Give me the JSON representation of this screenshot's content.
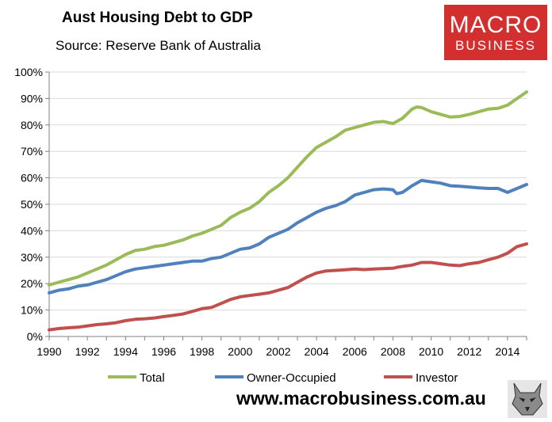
{
  "header": {
    "title": "Aust Housing Debt to GDP",
    "subtitle": "Source: Reserve Bank of Australia"
  },
  "logo": {
    "line1": "MACRO",
    "line2": "BUSINESS"
  },
  "footer": {
    "website": "www.macrobusiness.com.au"
  },
  "colors": {
    "total": "#9bbb59",
    "owner": "#4f81bd",
    "investor": "#c0504d",
    "logo_bg": "#d32f2f",
    "grid": "#d9d9d9"
  },
  "chart_data": {
    "type": "line",
    "title": "Aust Housing Debt to GDP",
    "xlim": [
      1990,
      2015
    ],
    "ylim": [
      0,
      100
    ],
    "y_unit": "%",
    "x_ticks": [
      "1990",
      "1992",
      "1994",
      "1996",
      "1998",
      "2000",
      "2002",
      "2004",
      "2006",
      "2008",
      "2010",
      "2012",
      "2014"
    ],
    "y_ticks": [
      "0%",
      "10%",
      "20%",
      "30%",
      "40%",
      "50%",
      "60%",
      "70%",
      "80%",
      "90%",
      "100%"
    ],
    "grid": "horizontal",
    "legend_position": "bottom",
    "series": [
      {
        "name": "Total",
        "color": "#9bbb59",
        "x": [
          1990,
          1990.5,
          1991,
          1991.5,
          1992,
          1992.5,
          1993,
          1993.5,
          1994,
          1994.5,
          1995,
          1995.5,
          1996,
          1996.5,
          1997,
          1997.5,
          1998,
          1998.5,
          1999,
          1999.5,
          2000,
          2000.5,
          2001,
          2001.5,
          2002,
          2002.5,
          2003,
          2003.5,
          2004,
          2004.5,
          2005,
          2005.5,
          2006,
          2006.5,
          2007,
          2007.5,
          2008,
          2008.5,
          2009,
          2009.25,
          2009.5,
          2010,
          2010.5,
          2011,
          2011.5,
          2012,
          2012.5,
          2013,
          2013.5,
          2014,
          2014.5,
          2015
        ],
        "y": [
          19.5,
          20.5,
          21.5,
          22.5,
          24,
          25.5,
          27,
          29,
          31,
          32.5,
          33,
          34,
          34.5,
          35.5,
          36.5,
          38,
          39,
          40.5,
          42,
          45,
          47,
          48.5,
          51,
          54.5,
          57,
          60,
          64,
          68,
          71.5,
          73.5,
          75.5,
          78,
          79,
          80,
          81,
          81.3,
          80.5,
          82.5,
          86,
          86.8,
          86.6,
          85,
          84,
          83,
          83.2,
          84,
          85,
          86,
          86.3,
          87.5,
          90,
          92.5
        ]
      },
      {
        "name": "Owner-Occupied",
        "color": "#4f81bd",
        "x": [
          1990,
          1990.5,
          1991,
          1991.5,
          1992,
          1992.5,
          1993,
          1993.5,
          1994,
          1994.5,
          1995,
          1995.5,
          1996,
          1996.5,
          1997,
          1997.5,
          1998,
          1998.5,
          1999,
          1999.5,
          2000,
          2000.5,
          2001,
          2001.5,
          2002,
          2002.5,
          2003,
          2003.5,
          2004,
          2004.5,
          2005,
          2005.5,
          2006,
          2006.5,
          2007,
          2007.5,
          2008,
          2008.2,
          2008.5,
          2009,
          2009.5,
          2010,
          2010.5,
          2011,
          2011.5,
          2012,
          2012.5,
          2013,
          2013.5,
          2014,
          2014.5,
          2015
        ],
        "y": [
          16.5,
          17.5,
          18,
          19,
          19.5,
          20.5,
          21.5,
          23,
          24.5,
          25.5,
          26,
          26.5,
          27,
          27.5,
          28,
          28.5,
          28.5,
          29.5,
          30,
          31.5,
          33,
          33.5,
          35,
          37.5,
          39,
          40.5,
          43,
          45,
          47,
          48.5,
          49.5,
          51,
          53.5,
          54.5,
          55.5,
          55.8,
          55.5,
          54,
          54.5,
          57,
          59,
          58.5,
          58,
          57,
          56.8,
          56.5,
          56.2,
          56,
          56,
          54.5,
          56,
          57.5
        ]
      },
      {
        "name": "Investor",
        "color": "#c0504d",
        "x": [
          1990,
          1990.5,
          1991,
          1991.5,
          1992,
          1992.5,
          1993,
          1993.5,
          1994,
          1994.5,
          1995,
          1995.5,
          1996,
          1996.5,
          1997,
          1997.5,
          1998,
          1998.5,
          1999,
          1999.5,
          2000,
          2000.5,
          2001,
          2001.5,
          2002,
          2002.5,
          2003,
          2003.5,
          2004,
          2004.5,
          2005,
          2005.5,
          2006,
          2006.5,
          2007,
          2007.5,
          2008,
          2008.3,
          2008.5,
          2009,
          2009.5,
          2010,
          2010.5,
          2011,
          2011.5,
          2012,
          2012.5,
          2013,
          2013.5,
          2014,
          2014.5,
          2015
        ],
        "y": [
          2.5,
          3,
          3.3,
          3.5,
          4,
          4.5,
          4.8,
          5.2,
          6,
          6.5,
          6.7,
          7,
          7.5,
          8,
          8.5,
          9.5,
          10.5,
          11,
          12.5,
          14,
          15,
          15.5,
          16,
          16.5,
          17.5,
          18.5,
          20.5,
          22.5,
          24,
          24.8,
          25,
          25.2,
          25.5,
          25.3,
          25.5,
          25.7,
          25.8,
          26.3,
          26.5,
          27,
          28,
          28,
          27.5,
          27,
          26.8,
          27.5,
          28,
          29,
          30,
          31.5,
          34,
          35
        ]
      }
    ]
  }
}
